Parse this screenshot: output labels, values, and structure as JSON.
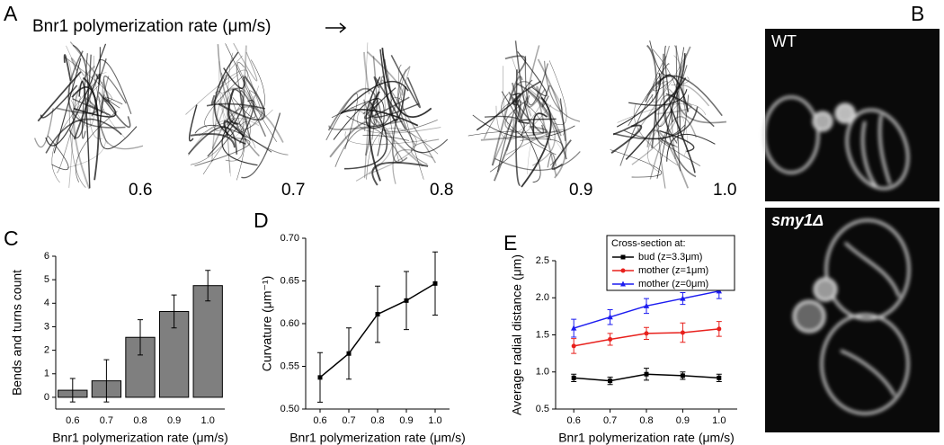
{
  "figure": {
    "panel_a": {
      "letter": "A",
      "title": "Bnr1 polymerization rate (μm/s)",
      "labels": [
        "0.6",
        "0.7",
        "0.8",
        "0.9",
        "1.0"
      ]
    },
    "panel_b": {
      "letter": "B",
      "labels": [
        "WT",
        "smy1Δ"
      ]
    }
  },
  "chart_data": [
    {
      "type": "bar",
      "panel_label": "C",
      "xlabel": "Bnr1 polymerization rate (μm/s)",
      "ylabel": "Bends and turns count",
      "categories": [
        "0.6",
        "0.7",
        "0.8",
        "0.9",
        "1.0"
      ],
      "values": [
        0.3,
        0.7,
        2.55,
        3.65,
        4.75
      ],
      "errors": [
        0.5,
        0.9,
        0.75,
        0.7,
        0.65
      ],
      "color": "#7f7f7f",
      "ylim": [
        -0.5,
        6
      ],
      "yticks": [
        0,
        1,
        2,
        3,
        4,
        5,
        6
      ]
    },
    {
      "type": "line",
      "panel_label": "D",
      "xlabel": "Bnr1 polymerization rate (μm/s)",
      "ylabel": "Curvature (μm⁻¹)",
      "x": [
        0.6,
        0.7,
        0.8,
        0.9,
        1.0
      ],
      "values": [
        0.537,
        0.565,
        0.611,
        0.627,
        0.647
      ],
      "errors": [
        0.029,
        0.03,
        0.033,
        0.034,
        0.037
      ],
      "color": "#000000",
      "marker": "square",
      "xlim": [
        0.55,
        1.05
      ],
      "xticks": [
        0.6,
        0.7,
        0.8,
        0.9,
        {
          "value": 1.0,
          "label": "1.0"
        }
      ],
      "ylim": [
        0.5,
        0.7
      ],
      "yticks": [
        {
          "value": 0.5,
          "label": "0.50"
        },
        0.55,
        {
          "value": 0.6,
          "label": "0.60"
        },
        0.65,
        {
          "value": 0.7,
          "label": "0.70"
        }
      ]
    },
    {
      "type": "line",
      "panel_label": "E",
      "xlabel": "Bnr1 polymerization rate (μm/s)",
      "ylabel": "Average radial distance (μm)",
      "legend_title": "Cross-section at:",
      "legend": "upper left",
      "x": [
        0.6,
        0.7,
        0.8,
        0.9,
        1.0
      ],
      "series": [
        {
          "name": "bud (z=3.3μm)",
          "color": "#000000",
          "marker": "square",
          "values": [
            0.92,
            0.88,
            0.97,
            0.95,
            0.92
          ],
          "errors": [
            0.05,
            0.05,
            0.08,
            0.05,
            0.05
          ]
        },
        {
          "name": "mother (z=1μm)",
          "color": "#e8201c",
          "marker": "circle",
          "values": [
            1.35,
            1.44,
            1.52,
            1.53,
            1.58
          ],
          "errors": [
            0.1,
            0.08,
            0.08,
            0.13,
            0.1
          ]
        },
        {
          "name": "mother (z=0μm)",
          "color": "#1c1cf0",
          "marker": "triangle",
          "values": [
            1.59,
            1.74,
            1.89,
            1.99,
            2.09
          ],
          "errors": [
            0.12,
            0.1,
            0.1,
            0.08,
            0.1
          ]
        }
      ],
      "xlim": [
        0.55,
        1.05
      ],
      "xticks": [
        0.6,
        0.7,
        0.8,
        0.9,
        {
          "value": 1.0,
          "label": "1.0"
        }
      ],
      "ylim": [
        0.5,
        2.5
      ],
      "yticks": [
        0.5,
        {
          "value": 1.0,
          "label": "1.0"
        },
        1.5,
        {
          "value": 2.0,
          "label": "2.0"
        },
        2.5
      ]
    }
  ]
}
